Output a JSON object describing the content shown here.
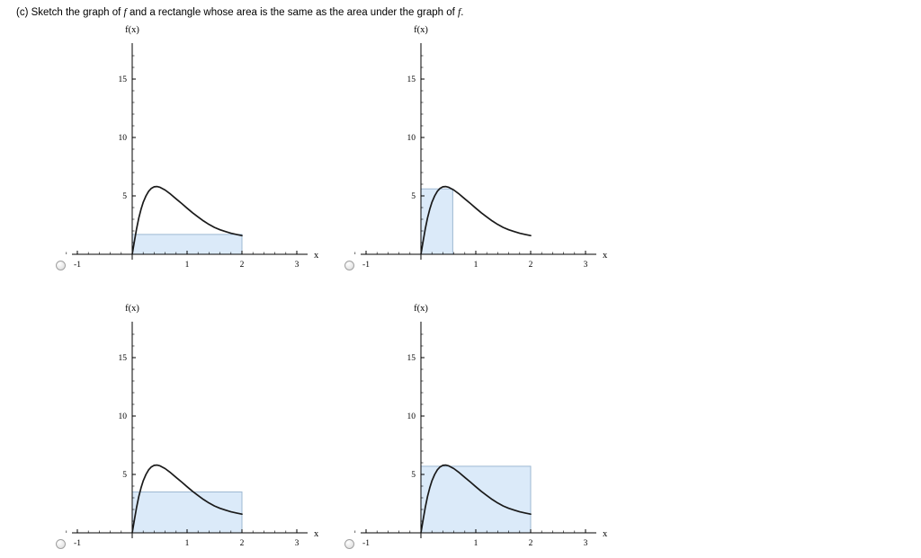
{
  "question": {
    "prefix": "(c) Sketch the graph of ",
    "f1": "f",
    "middle": " and a rectangle whose area is the same as the area under the graph of ",
    "f2": "f",
    "suffix": "."
  },
  "colors": {
    "curve": "#1a1a1a",
    "rect_fill": "#dbeaf9",
    "rect_stroke": "#9db8d2",
    "axis": "#000000"
  },
  "chart_data": {
    "type": "line",
    "title": "",
    "xlabel": "x",
    "ylabel": "f(x)",
    "x_ticks": [
      -1,
      1,
      2,
      3
    ],
    "y_ticks": [
      5,
      10,
      15
    ],
    "x_minor_step": 0.2,
    "y_minor_step": 1,
    "xlim": [
      -1.15,
      3.15
    ],
    "ylim": [
      0,
      18
    ],
    "curve_points": [
      [
        0,
        0
      ],
      [
        0.04,
        1.1
      ],
      [
        0.08,
        2.2
      ],
      [
        0.12,
        3.1
      ],
      [
        0.16,
        3.85
      ],
      [
        0.2,
        4.45
      ],
      [
        0.25,
        5.0
      ],
      [
        0.3,
        5.4
      ],
      [
        0.35,
        5.65
      ],
      [
        0.4,
        5.78
      ],
      [
        0.45,
        5.8
      ],
      [
        0.5,
        5.75
      ],
      [
        0.6,
        5.5
      ],
      [
        0.7,
        5.15
      ],
      [
        0.8,
        4.75
      ],
      [
        0.9,
        4.35
      ],
      [
        1.0,
        3.95
      ],
      [
        1.1,
        3.55
      ],
      [
        1.2,
        3.2
      ],
      [
        1.3,
        2.85
      ],
      [
        1.4,
        2.55
      ],
      [
        1.5,
        2.3
      ],
      [
        1.6,
        2.1
      ],
      [
        1.7,
        1.95
      ],
      [
        1.8,
        1.8
      ],
      [
        1.9,
        1.7
      ],
      [
        2.0,
        1.6
      ]
    ],
    "options": [
      {
        "label": "option-1",
        "selected": false,
        "rectangle": {
          "x0": 0,
          "x1": 2,
          "height": 1.7
        }
      },
      {
        "label": "option-2",
        "selected": false,
        "rectangle": {
          "x0": 0,
          "x1": 0.58,
          "height": 5.6
        }
      },
      {
        "label": "option-3",
        "selected": false,
        "rectangle": {
          "x0": 0,
          "x1": 2,
          "height": 3.5
        }
      },
      {
        "label": "option-4",
        "selected": false,
        "rectangle": {
          "x0": 0,
          "x1": 2,
          "height": 5.7
        }
      }
    ]
  }
}
